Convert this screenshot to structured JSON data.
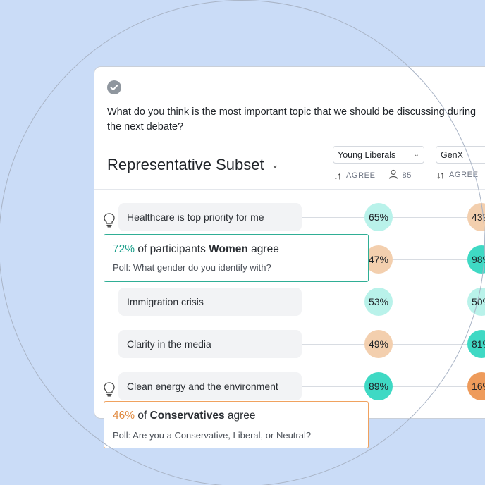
{
  "question": "What do you think is the most important topic that we should be discussing during the next debate?",
  "subset": {
    "label": "Representative Subset"
  },
  "segments": [
    {
      "name": "Young Liberals",
      "sort_label": "AGREE",
      "count": "85"
    },
    {
      "name": "GenX",
      "sort_label": "AGREE"
    }
  ],
  "statements": [
    {
      "text": "Healthcare is top priority for me",
      "has_bulb": true,
      "values": [
        "65%",
        "43%"
      ]
    },
    {
      "text": "",
      "has_bulb": false,
      "values": [
        "47%",
        "98%"
      ]
    },
    {
      "text": "Immigration crisis",
      "has_bulb": false,
      "values": [
        "53%",
        "50%"
      ]
    },
    {
      "text": "Clarity in the media",
      "has_bulb": false,
      "values": [
        "49%",
        "81%"
      ]
    },
    {
      "text": "Clean energy and the environment",
      "has_bulb": true,
      "values": [
        "89%",
        "16%"
      ]
    }
  ],
  "callouts": [
    {
      "pct": "72%",
      "pre": "of participants",
      "group": "Women",
      "post": "agree",
      "poll": "Poll: What gender do you identify with?",
      "color": "#1a9e8a",
      "border": "#2fae95"
    },
    {
      "pct": "46%",
      "pre": "of",
      "group": "Conservatives",
      "post": "agree",
      "poll": "Poll: Are you a Conservative, Liberal, or Neutral?",
      "color": "#e0893e",
      "border": "#f0a25f"
    }
  ],
  "colors": {
    "background": "#cadcf7",
    "agree_high": "#3fd9c4",
    "agree_mid": "#b9f2ea",
    "disagree_mid": "#f3cfae",
    "disagree_high": "#ee9b5b"
  },
  "icons": {
    "check": "check-circle-icon",
    "bulb": "lightbulb-icon",
    "sort": "sort-arrows-icon",
    "person": "person-icon",
    "chevron": "chevron-down-icon"
  }
}
